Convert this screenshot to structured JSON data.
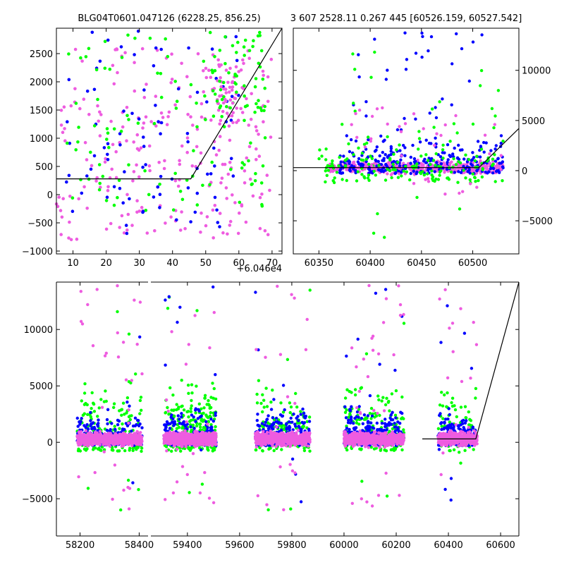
{
  "titles": {
    "left": "BLG04T0601.047126 (6228.25, 856.25)",
    "right": "3 607 2528.11 0.267 445 [60526.159, 60527.542]"
  },
  "offset_label": "+6.046e4",
  "colors": {
    "blue": "#0000ff",
    "green": "#00ff00",
    "pink": "#ee5ce0",
    "model": "#000000"
  },
  "chart_data": [
    {
      "type": "scatter",
      "name": "top-left-zoom",
      "title": "BLG04T0601.047126 (6228.25, 856.25)",
      "xlim": [
        5,
        73
      ],
      "ylim": [
        -1050,
        2950
      ],
      "xticks": [
        10,
        20,
        30,
        40,
        50,
        60,
        70
      ],
      "yticks": [
        -1000,
        -500,
        0,
        500,
        1000,
        1500,
        2000,
        2500
      ],
      "y_axis_side": "left",
      "x_offset_text": "+6.046e4",
      "model_line": {
        "x": [
          5,
          45.5,
          73
        ],
        "y": [
          280,
          280,
          2950
        ]
      },
      "clusters": [
        {
          "series": "pink",
          "x": [
            5,
            70
          ],
          "y": [
            -800,
            2600
          ],
          "n": 240,
          "seed": 11
        },
        {
          "series": "blue",
          "x": [
            8,
            60
          ],
          "y": [
            -700,
            2900
          ],
          "n": 90,
          "seed": 12
        },
        {
          "series": "green",
          "x": [
            8,
            68
          ],
          "y": [
            -300,
            2900
          ],
          "n": 110,
          "seed": 13
        },
        {
          "series": "pink",
          "x": [
            52,
            63
          ],
          "y": [
            1200,
            2500
          ],
          "n": 50,
          "seed": 14
        },
        {
          "series": "green",
          "x": [
            52,
            68
          ],
          "y": [
            1300,
            2900
          ],
          "n": 40,
          "seed": 15
        }
      ]
    },
    {
      "type": "scatter",
      "name": "top-right-season",
      "title": "3 607 2528.11 0.267 445 [60526.159, 60527.542]",
      "xlim": [
        60325,
        60545
      ],
      "ylim": [
        -8300,
        14200
      ],
      "xticks": [
        60350,
        60400,
        60450,
        60500
      ],
      "yticks": [
        -5000,
        0,
        5000,
        10000
      ],
      "y_axis_side": "right",
      "model_line": {
        "x": [
          60325,
          60506,
          60545
        ],
        "y": [
          300,
          300,
          4200
        ]
      },
      "clusters": [
        {
          "series": "pink",
          "x": [
            60360,
            60530
          ],
          "y": [
            -600,
            1200
          ],
          "n": 520,
          "seed": 21
        },
        {
          "series": "blue",
          "x": [
            60370,
            60530
          ],
          "y": [
            -300,
            5500
          ],
          "n": 260,
          "seed": 22
        },
        {
          "series": "green",
          "x": [
            60350,
            60530
          ],
          "y": [
            -1200,
            6000
          ],
          "n": 150,
          "seed": 23
        },
        {
          "series": "blue",
          "x": [
            60380,
            60525
          ],
          "y": [
            5000,
            14000
          ],
          "n": 30,
          "seed": 24
        },
        {
          "series": "green",
          "x": [
            60380,
            60530
          ],
          "y": [
            -7000,
            12000
          ],
          "n": 30,
          "seed": 25
        },
        {
          "series": "pink",
          "x": [
            60380,
            60530
          ],
          "y": [
            -3000,
            9000
          ],
          "n": 40,
          "seed": 26
        }
      ]
    },
    {
      "type": "scatter",
      "name": "bottom-full-lightcurve",
      "xlim_segments": [
        [
          58120,
          58430
        ],
        [
          59260,
          60670
        ]
      ],
      "ylim": [
        -8300,
        14200
      ],
      "xticks": [
        58200,
        58400,
        59400,
        59600,
        59800,
        60000,
        60200,
        60400,
        60600
      ],
      "yticks": [
        -5000,
        0,
        5000,
        10000
      ],
      "y_axis_side": "left",
      "model_line": {
        "x": [
          60300,
          60505,
          60670
        ],
        "y": [
          300,
          300,
          14200
        ]
      },
      "seasons": [
        {
          "x": [
            58190,
            58410
          ],
          "n_pink": 700,
          "n_blue": 170,
          "n_green": 170,
          "seed": 31
        },
        {
          "x": [
            59310,
            59510
          ],
          "n_pink": 750,
          "n_blue": 200,
          "n_green": 250,
          "seed": 32
        },
        {
          "x": [
            59660,
            59870
          ],
          "n_pink": 700,
          "n_blue": 260,
          "n_green": 150,
          "seed": 33
        },
        {
          "x": [
            60000,
            60230
          ],
          "n_pink": 700,
          "n_blue": 260,
          "n_green": 160,
          "seed": 34
        },
        {
          "x": [
            60360,
            60510
          ],
          "n_pink": 450,
          "n_blue": 170,
          "n_green": 80,
          "seed": 35
        }
      ]
    }
  ]
}
